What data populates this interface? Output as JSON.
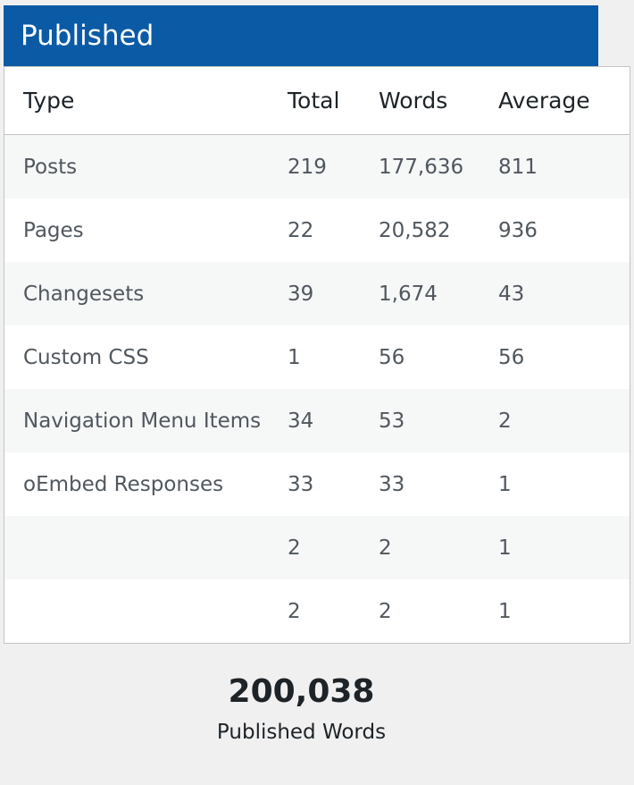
{
  "panel": {
    "title": "Published"
  },
  "table": {
    "headers": [
      "Type",
      "Total",
      "Words",
      "Average"
    ],
    "rows": [
      {
        "type": "Posts",
        "total": "219",
        "words": "177,636",
        "average": "811"
      },
      {
        "type": "Pages",
        "total": "22",
        "words": "20,582",
        "average": "936"
      },
      {
        "type": "Changesets",
        "total": "39",
        "words": "1,674",
        "average": "43"
      },
      {
        "type": "Custom CSS",
        "total": "1",
        "words": "56",
        "average": "56"
      },
      {
        "type": "Navigation Menu Items",
        "total": "34",
        "words": "53",
        "average": "2"
      },
      {
        "type": "oEmbed Responses",
        "total": "33",
        "words": "33",
        "average": "1"
      },
      {
        "type": "",
        "total": "2",
        "words": "2",
        "average": "1"
      },
      {
        "type": "",
        "total": "2",
        "words": "2",
        "average": "1"
      }
    ]
  },
  "summary": {
    "number": "200,038",
    "label": "Published Words"
  }
}
